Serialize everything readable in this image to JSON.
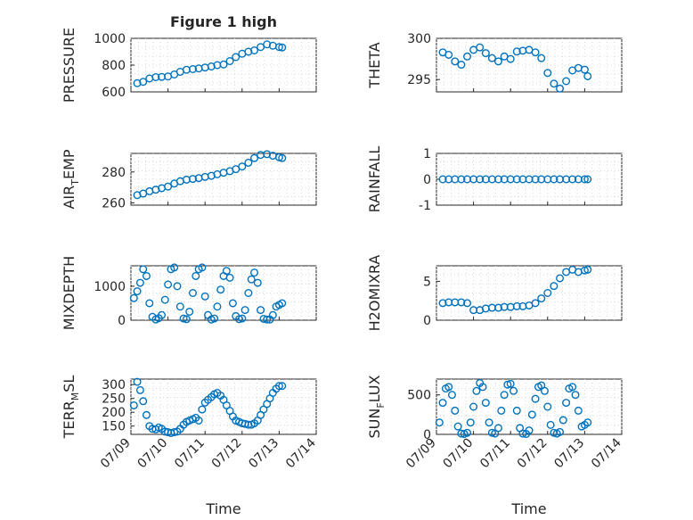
{
  "figure": {
    "title": "Figure 1 high",
    "x_axis": {
      "label": "Time",
      "ticks": [
        0,
        1,
        2,
        3,
        4,
        5
      ],
      "tick_labels": [
        "07/09",
        "07/10",
        "07/11",
        "07/12",
        "07/13",
        "07/14"
      ],
      "xlim": [
        0,
        5
      ]
    }
  },
  "colors": {
    "marker": "#0072bd",
    "axes": "#262626",
    "grid": "#d9d9d9"
  },
  "chart_data": [
    {
      "id": "pressure",
      "type": "scatter",
      "column": 0,
      "row": 0,
      "ylabel": "PRESSURE",
      "ylim": [
        600,
        1000
      ],
      "yticks": [
        600,
        800,
        1000
      ],
      "grid": true,
      "x": [
        0.17,
        0.33,
        0.5,
        0.67,
        0.83,
        1.0,
        1.17,
        1.33,
        1.5,
        1.67,
        1.83,
        2.0,
        2.17,
        2.33,
        2.5,
        2.67,
        2.83,
        3.0,
        3.17,
        3.33,
        3.5,
        3.67,
        3.83,
        4.0,
        4.08
      ],
      "y": [
        665,
        675,
        700,
        710,
        712,
        715,
        730,
        750,
        765,
        770,
        775,
        782,
        790,
        800,
        805,
        830,
        860,
        885,
        900,
        910,
        935,
        955,
        945,
        935,
        932
      ]
    },
    {
      "id": "theta",
      "type": "scatter",
      "column": 1,
      "row": 0,
      "ylabel": "THETA",
      "ylim": [
        293.5,
        300
      ],
      "yticks": [
        295,
        300
      ],
      "grid": true,
      "x": [
        0.17,
        0.33,
        0.5,
        0.67,
        0.83,
        1.0,
        1.17,
        1.33,
        1.5,
        1.67,
        1.83,
        2.0,
        2.17,
        2.33,
        2.5,
        2.67,
        2.83,
        3.0,
        3.17,
        3.33,
        3.5,
        3.67,
        3.83,
        4.0,
        4.08
      ],
      "y": [
        298.3,
        298.0,
        297.2,
        296.8,
        297.8,
        298.6,
        298.9,
        298.2,
        297.6,
        297.2,
        297.8,
        297.5,
        298.4,
        298.5,
        298.6,
        298.3,
        297.6,
        295.8,
        294.5,
        293.9,
        294.8,
        296.1,
        296.4,
        296.2,
        295.4
      ]
    },
    {
      "id": "air-temp",
      "type": "scatter",
      "column": 0,
      "row": 1,
      "ylabel": "AIR_TEMP",
      "ylim": [
        258.5,
        292
      ],
      "yticks": [
        260,
        280
      ],
      "grid": true,
      "x": [
        0.17,
        0.33,
        0.5,
        0.67,
        0.83,
        1.0,
        1.17,
        1.33,
        1.5,
        1.67,
        1.83,
        2.0,
        2.17,
        2.33,
        2.5,
        2.67,
        2.83,
        3.0,
        3.17,
        3.33,
        3.5,
        3.67,
        3.83,
        4.0,
        4.08
      ],
      "y": [
        265,
        266,
        267.5,
        268.5,
        269.5,
        270.5,
        272.5,
        274,
        275,
        275.5,
        276,
        276.8,
        277.5,
        278.5,
        279.5,
        280.5,
        281.8,
        283.5,
        286,
        289,
        291,
        291.5,
        290.5,
        289.5,
        289
      ]
    },
    {
      "id": "rainfall",
      "type": "scatter",
      "column": 1,
      "row": 1,
      "ylabel": "RAINFALL",
      "ylim": [
        -1,
        1
      ],
      "yticks": [
        -1,
        0,
        1
      ],
      "grid": true,
      "x": [
        0.17,
        0.33,
        0.5,
        0.67,
        0.83,
        1.0,
        1.17,
        1.33,
        1.5,
        1.67,
        1.83,
        2.0,
        2.17,
        2.33,
        2.5,
        2.67,
        2.83,
        3.0,
        3.17,
        3.33,
        3.5,
        3.67,
        3.83,
        4.0,
        4.08
      ],
      "y": [
        0,
        0,
        0,
        0,
        0,
        0,
        0,
        0,
        0,
        0,
        0,
        0,
        0,
        0,
        0,
        0,
        0,
        0,
        0,
        0,
        0,
        0,
        0,
        0,
        0
      ]
    },
    {
      "id": "mixdepth",
      "type": "scatter",
      "column": 0,
      "row": 2,
      "ylabel": "MIXDEPTH",
      "ylim": [
        0,
        1600
      ],
      "yticks": [
        0,
        1000
      ],
      "grid": true,
      "x": [
        0.08,
        0.17,
        0.25,
        0.33,
        0.42,
        0.5,
        0.58,
        0.67,
        0.75,
        0.83,
        0.92,
        1.0,
        1.08,
        1.17,
        1.25,
        1.33,
        1.42,
        1.5,
        1.58,
        1.67,
        1.75,
        1.83,
        1.92,
        2.0,
        2.08,
        2.17,
        2.25,
        2.33,
        2.42,
        2.5,
        2.58,
        2.67,
        2.75,
        2.83,
        2.92,
        3.0,
        3.08,
        3.17,
        3.25,
        3.33,
        3.42,
        3.5,
        3.58,
        3.67,
        3.75,
        3.83,
        3.92,
        4.0,
        4.08
      ],
      "y": [
        650,
        850,
        1100,
        1500,
        1300,
        500,
        100,
        20,
        60,
        150,
        600,
        1050,
        1500,
        1550,
        1000,
        400,
        50,
        30,
        250,
        800,
        1300,
        1500,
        1550,
        700,
        150,
        20,
        50,
        400,
        900,
        1300,
        1450,
        1250,
        500,
        120,
        30,
        50,
        300,
        800,
        1200,
        1400,
        1100,
        300,
        40,
        20,
        20,
        150,
        400,
        450,
        500
      ]
    },
    {
      "id": "h2omixra",
      "type": "scatter",
      "column": 1,
      "row": 2,
      "ylabel": "H2OMIXRA",
      "ylim": [
        0,
        7
      ],
      "yticks": [
        0,
        5
      ],
      "grid": true,
      "x": [
        0.17,
        0.33,
        0.5,
        0.67,
        0.83,
        1.0,
        1.17,
        1.33,
        1.5,
        1.67,
        1.83,
        2.0,
        2.17,
        2.33,
        2.5,
        2.67,
        2.83,
        3.0,
        3.17,
        3.33,
        3.5,
        3.67,
        3.83,
        4.0,
        4.08
      ],
      "y": [
        2.2,
        2.3,
        2.3,
        2.3,
        2.2,
        1.3,
        1.3,
        1.5,
        1.6,
        1.6,
        1.7,
        1.7,
        1.8,
        1.8,
        1.9,
        2.2,
        2.8,
        3.5,
        4.4,
        5.4,
        6.2,
        6.5,
        6.2,
        6.4,
        6.5
      ]
    },
    {
      "id": "terr-msl",
      "type": "scatter",
      "column": 0,
      "row": 3,
      "ylabel": "TERR_MSL",
      "ylim": [
        120,
        320
      ],
      "yticks": [
        150,
        200,
        250,
        300
      ],
      "grid": true,
      "x": [
        0.08,
        0.17,
        0.25,
        0.33,
        0.42,
        0.5,
        0.58,
        0.67,
        0.75,
        0.83,
        0.92,
        1.0,
        1.08,
        1.17,
        1.25,
        1.33,
        1.42,
        1.5,
        1.58,
        1.67,
        1.75,
        1.83,
        1.92,
        2.0,
        2.08,
        2.17,
        2.25,
        2.33,
        2.42,
        2.5,
        2.58,
        2.67,
        2.75,
        2.83,
        2.92,
        3.0,
        3.08,
        3.17,
        3.25,
        3.33,
        3.42,
        3.5,
        3.58,
        3.67,
        3.75,
        3.83,
        3.92,
        4.0,
        4.08
      ],
      "y": [
        225,
        310,
        280,
        240,
        190,
        150,
        140,
        138,
        145,
        140,
        130,
        128,
        125,
        128,
        130,
        140,
        155,
        165,
        170,
        175,
        180,
        170,
        210,
        235,
        245,
        255,
        265,
        270,
        260,
        245,
        225,
        205,
        185,
        170,
        165,
        160,
        158,
        155,
        155,
        160,
        170,
        190,
        210,
        230,
        250,
        270,
        285,
        295,
        295
      ]
    },
    {
      "id": "sun-flux",
      "type": "scatter",
      "column": 1,
      "row": 3,
      "ylabel": "SUN_FLUX",
      "ylim": [
        0,
        700
      ],
      "yticks": [
        0,
        500
      ],
      "grid": true,
      "x": [
        0.08,
        0.17,
        0.25,
        0.33,
        0.42,
        0.5,
        0.58,
        0.67,
        0.75,
        0.83,
        0.92,
        1.0,
        1.08,
        1.17,
        1.25,
        1.33,
        1.42,
        1.5,
        1.58,
        1.67,
        1.75,
        1.83,
        1.92,
        2.0,
        2.08,
        2.17,
        2.25,
        2.33,
        2.42,
        2.5,
        2.58,
        2.67,
        2.75,
        2.83,
        2.92,
        3.0,
        3.08,
        3.17,
        3.25,
        3.33,
        3.42,
        3.5,
        3.58,
        3.67,
        3.75,
        3.83,
        3.92,
        4.0,
        4.08
      ],
      "y": [
        150,
        400,
        580,
        600,
        500,
        300,
        100,
        10,
        5,
        20,
        150,
        350,
        550,
        650,
        600,
        400,
        150,
        20,
        10,
        80,
        300,
        500,
        630,
        640,
        550,
        300,
        80,
        10,
        5,
        50,
        250,
        450,
        600,
        620,
        550,
        350,
        120,
        20,
        10,
        30,
        180,
        400,
        580,
        600,
        500,
        300,
        100,
        120,
        150
      ]
    }
  ]
}
